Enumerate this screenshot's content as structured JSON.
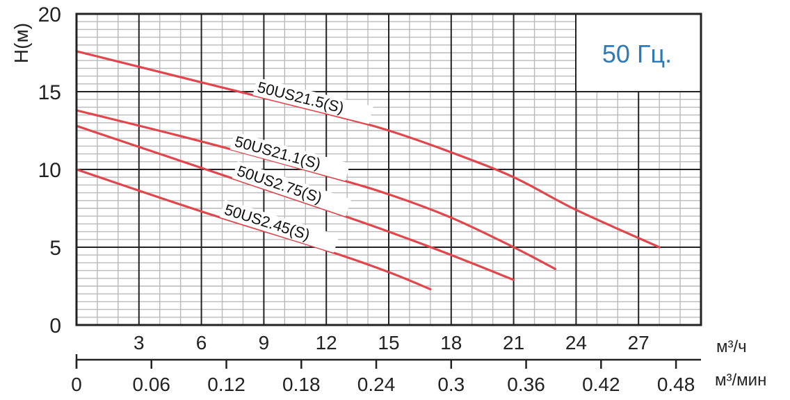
{
  "chart_data": {
    "type": "line",
    "ylabel": "H(м)",
    "ylim": [
      0,
      20
    ],
    "y_ticks": [
      "0",
      "5",
      "10",
      "15",
      "20"
    ],
    "x_primary": {
      "unit": "м³/ч",
      "lim": [
        0,
        30
      ],
      "ticks": [
        "3",
        "6",
        "9",
        "12",
        "15",
        "18",
        "21",
        "24",
        "27"
      ]
    },
    "x_secondary": {
      "unit": "м³/мин",
      "lim": [
        0,
        0.5
      ],
      "ticks": [
        "0",
        "0.06",
        "0.12",
        "0.18",
        "0.24",
        "0.3",
        "0.36",
        "0.42",
        "0.48"
      ]
    },
    "annotation": "50 Гц.",
    "grid": true,
    "line_color": "#e0464c",
    "annotation_color": "#2f7ab5",
    "series": [
      {
        "name": "50US21.5(S)",
        "x": [
          0,
          6,
          12,
          15,
          18,
          21,
          24,
          28
        ],
        "y": [
          17.6,
          15.6,
          13.6,
          12.5,
          11.1,
          9.5,
          7.4,
          5.0
        ]
      },
      {
        "name": "50US21.1(S)",
        "x": [
          0,
          6,
          12,
          15,
          18,
          21,
          23
        ],
        "y": [
          13.8,
          11.8,
          9.6,
          8.4,
          6.9,
          5.0,
          3.6
        ]
      },
      {
        "name": "50US2.75(S)",
        "x": [
          0,
          6,
          12,
          15,
          18,
          21
        ],
        "y": [
          12.8,
          10.1,
          7.4,
          6.0,
          4.5,
          2.9
        ]
      },
      {
        "name": "50US2.45(S)",
        "x": [
          0,
          6,
          12,
          15,
          17
        ],
        "y": [
          10.0,
          7.3,
          4.8,
          3.4,
          2.3
        ]
      }
    ]
  }
}
